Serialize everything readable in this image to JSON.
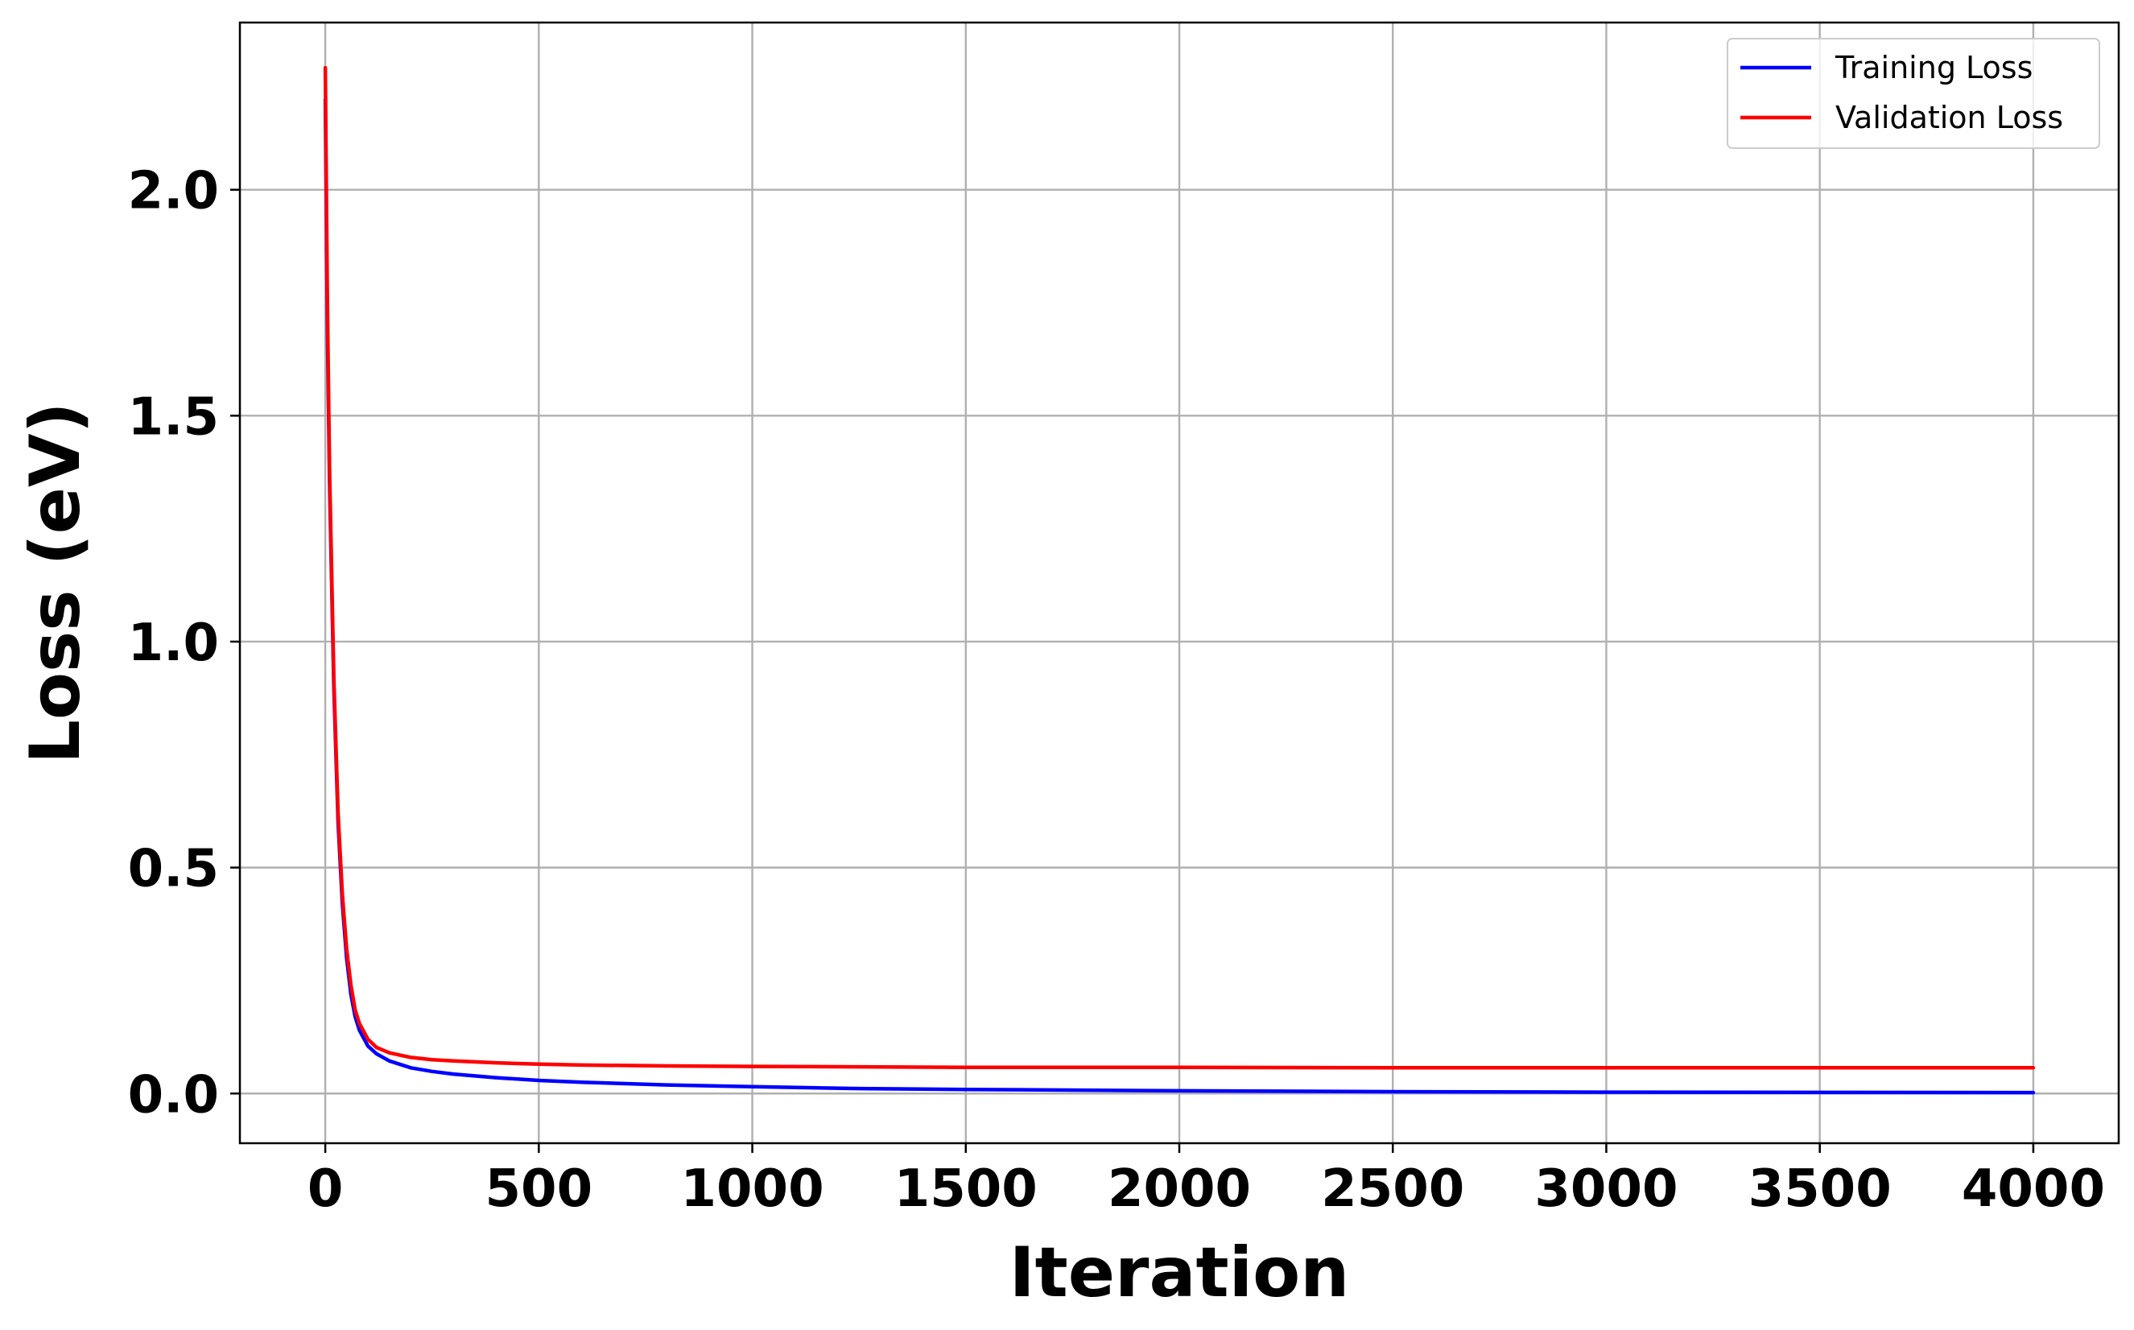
{
  "chart_data": {
    "type": "line",
    "xlabel": "Iteration",
    "ylabel": "Loss (eV)",
    "xlim": [
      -200,
      4200
    ],
    "ylim": [
      -0.11,
      2.37
    ],
    "xticks": [
      0,
      500,
      1000,
      1500,
      2000,
      2500,
      3000,
      3500,
      4000
    ],
    "xtick_labels": [
      "0",
      "500",
      "1000",
      "1500",
      "2000",
      "2500",
      "3000",
      "3500",
      "4000"
    ],
    "yticks": [
      0.0,
      0.5,
      1.0,
      1.5,
      2.0
    ],
    "ytick_labels": [
      "0.0",
      "0.5",
      "1.0",
      "1.5",
      "2.0"
    ],
    "grid": true,
    "legend_position": "top-right",
    "series": [
      {
        "name": "Training Loss",
        "color": "#0000ff",
        "x": [
          0,
          5,
          10,
          20,
          30,
          40,
          50,
          60,
          70,
          80,
          100,
          120,
          150,
          200,
          250,
          300,
          400,
          500,
          600,
          800,
          1000,
          1250,
          1500,
          2000,
          2500,
          3000,
          3500,
          4000
        ],
        "y": [
          2.2,
          1.7,
          1.35,
          0.9,
          0.6,
          0.42,
          0.3,
          0.22,
          0.17,
          0.14,
          0.105,
          0.088,
          0.072,
          0.057,
          0.049,
          0.043,
          0.035,
          0.029,
          0.025,
          0.019,
          0.015,
          0.011,
          0.009,
          0.006,
          0.004,
          0.003,
          0.0025,
          0.002
        ]
      },
      {
        "name": "Validation Loss",
        "color": "#ff0000",
        "x": [
          0,
          5,
          10,
          20,
          30,
          40,
          50,
          60,
          70,
          80,
          100,
          120,
          150,
          200,
          250,
          300,
          400,
          500,
          600,
          800,
          1000,
          1250,
          1500,
          2000,
          2500,
          3000,
          3500,
          4000
        ],
        "y": [
          2.27,
          1.75,
          1.38,
          0.92,
          0.62,
          0.44,
          0.32,
          0.24,
          0.185,
          0.155,
          0.12,
          0.102,
          0.09,
          0.08,
          0.075,
          0.072,
          0.068,
          0.065,
          0.063,
          0.061,
          0.06,
          0.059,
          0.058,
          0.058,
          0.057,
          0.057,
          0.057,
          0.057
        ]
      }
    ]
  }
}
